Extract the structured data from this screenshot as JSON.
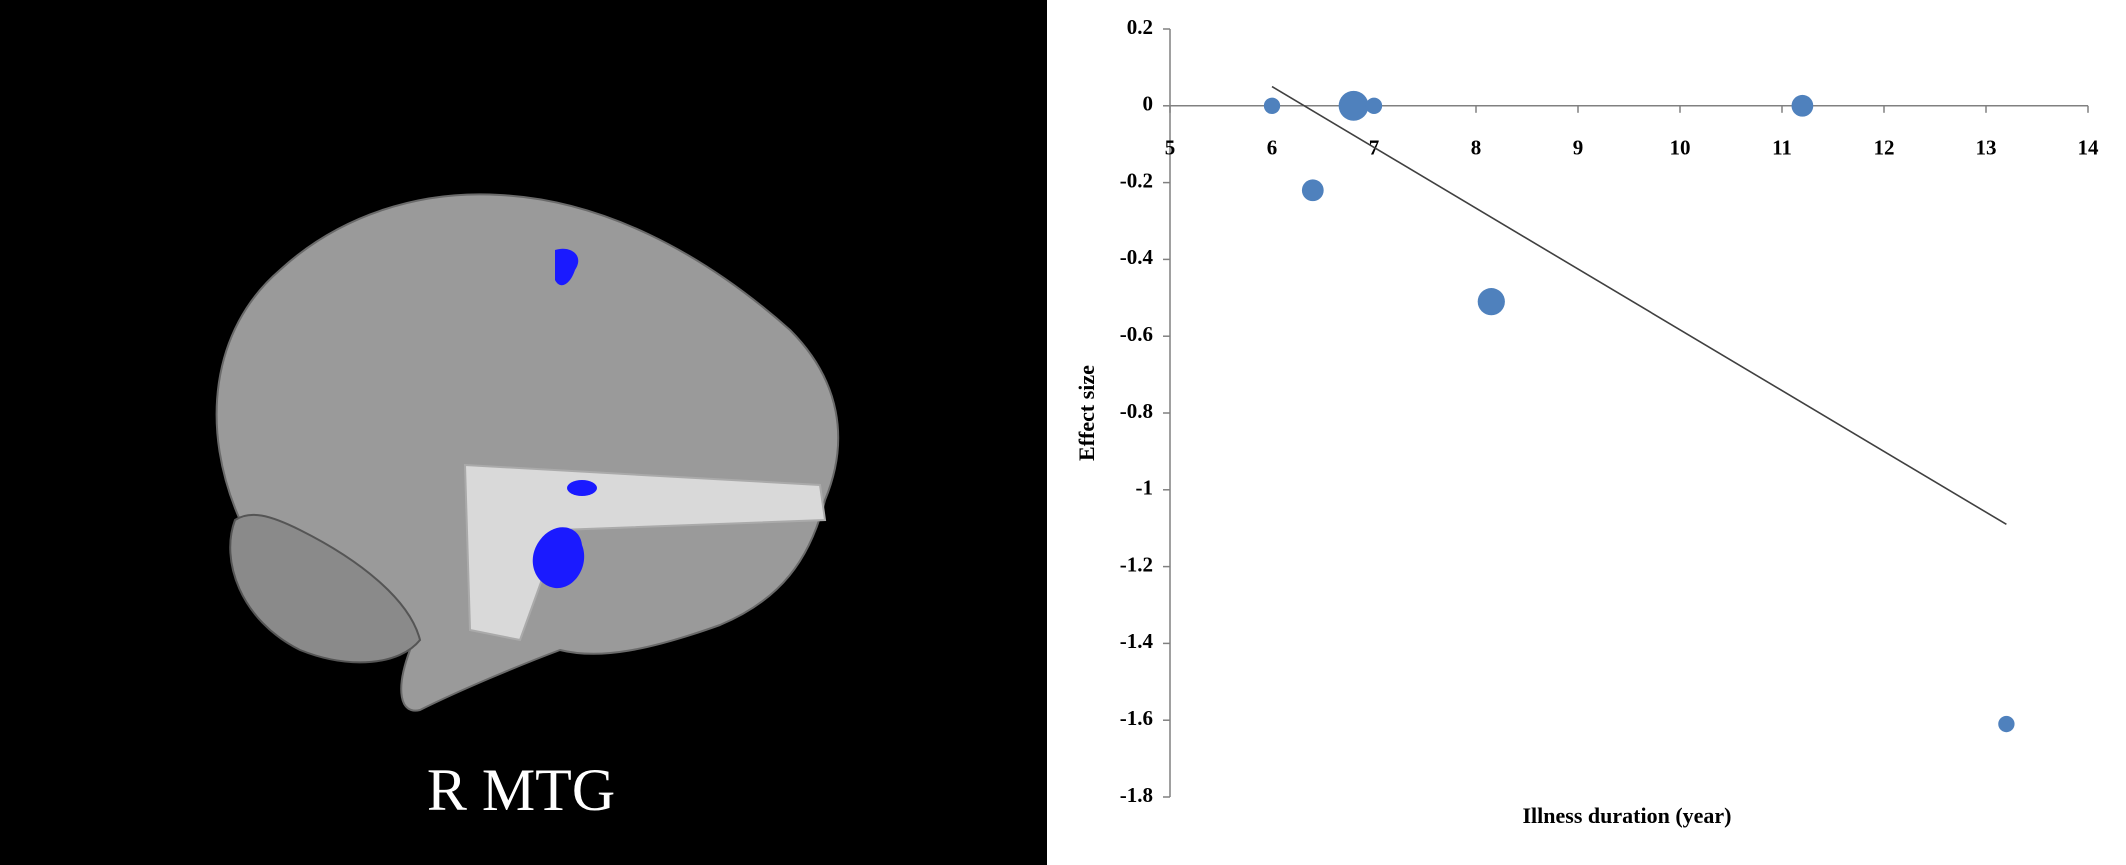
{
  "image": {
    "caption": "R MTG"
  },
  "chart_data": {
    "type": "scatter",
    "x_label": "Illness duration (year)",
    "y_label": "Effect size",
    "series": [
      {
        "color": "#4f81bd",
        "x": [
          6.0,
          6.4,
          6.8,
          7.0,
          8.15,
          11.2,
          13.2
        ],
        "values": [
          0,
          -0.22,
          0,
          0,
          -0.51,
          0,
          -1.61
        ],
        "sizes": [
          6,
          8,
          11,
          6,
          10,
          8,
          6
        ]
      }
    ],
    "trendline": {
      "color": "#404040",
      "x": [
        6.0,
        13.2
      ],
      "values": [
        0.05,
        -1.09
      ]
    },
    "xlim": [
      5,
      14
    ],
    "xticks": [
      5,
      6,
      7,
      8,
      9,
      10,
      11,
      12,
      13,
      14
    ],
    "ylim": [
      -1.8,
      0.2
    ],
    "yticks": [
      0.2,
      0,
      -0.2,
      -0.4,
      -0.6,
      -0.8,
      -1,
      -1.2,
      -1.4,
      -1.6,
      -1.8
    ]
  }
}
